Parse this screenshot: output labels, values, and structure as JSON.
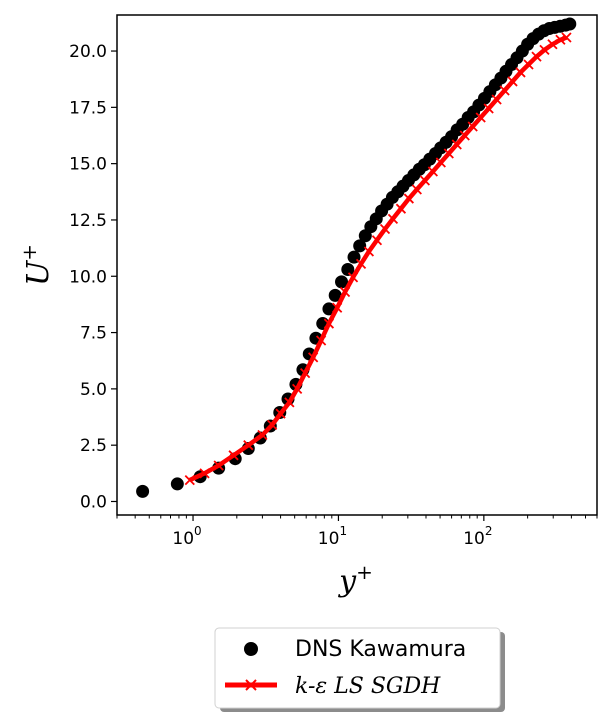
{
  "chart_data": {
    "type": "line",
    "xscale": "log",
    "xlim": [
      0.3,
      600
    ],
    "ylim": [
      -0.6,
      21.6
    ],
    "xlabel": "y+",
    "ylabel": "U+",
    "x_ticks": [
      {
        "value": 1,
        "base": "10",
        "exp": "0"
      },
      {
        "value": 10,
        "base": "10",
        "exp": "1"
      },
      {
        "value": 100,
        "base": "10",
        "exp": "2"
      }
    ],
    "y_ticks": [
      "0.0",
      "2.5",
      "5.0",
      "7.5",
      "10.0",
      "12.5",
      "15.0",
      "17.5",
      "20.0"
    ],
    "grid": false,
    "legend_position": "below",
    "series": [
      {
        "name": "DNS Kawamura",
        "style": "markers",
        "marker": "circle",
        "color": "#000000",
        "x": [
          0.45,
          0.78,
          1.12,
          1.5,
          1.95,
          2.4,
          2.9,
          3.4,
          3.95,
          4.5,
          5.1,
          5.7,
          6.3,
          7.0,
          7.8,
          8.6,
          9.5,
          10.5,
          11.6,
          12.8,
          14.0,
          15.3,
          16.7,
          18.2,
          19.8,
          21.6,
          23.5,
          25.6,
          27.8,
          30.3,
          33,
          36,
          39,
          42.5,
          46.5,
          50.5,
          55,
          60,
          65.5,
          71.5,
          78,
          85,
          92.5,
          101,
          110,
          120,
          131,
          142,
          155,
          169,
          184,
          200,
          218,
          238,
          259,
          282,
          307,
          335,
          365,
          390
        ],
        "y": [
          0.45,
          0.78,
          1.1,
          1.48,
          1.9,
          2.35,
          2.82,
          3.35,
          3.95,
          4.55,
          5.2,
          5.85,
          6.55,
          7.25,
          7.9,
          8.55,
          9.15,
          9.75,
          10.3,
          10.85,
          11.35,
          11.8,
          12.2,
          12.55,
          12.9,
          13.2,
          13.5,
          13.75,
          14.0,
          14.25,
          14.5,
          14.75,
          14.95,
          15.2,
          15.45,
          15.7,
          15.95,
          16.2,
          16.5,
          16.75,
          17.05,
          17.3,
          17.6,
          17.9,
          18.2,
          18.5,
          18.8,
          19.1,
          19.4,
          19.7,
          20.0,
          20.3,
          20.55,
          20.75,
          20.9,
          21.0,
          21.05,
          21.1,
          21.15,
          21.2
        ]
      },
      {
        "name": "k-ε LS SGDH",
        "style": "line+markers",
        "marker": "x",
        "color": "#ff0000",
        "x": [
          0.95,
          1.2,
          1.5,
          1.9,
          2.4,
          3.0,
          3.5,
          4.0,
          4.6,
          5.2,
          5.9,
          6.7,
          7.6,
          8.6,
          9.8,
          11.1,
          12.6,
          14.3,
          16.2,
          18.4,
          20.9,
          23.7,
          26.9,
          30.5,
          34.6,
          39.3,
          44.6,
          50.6,
          57.4,
          65.1,
          73.9,
          83.8,
          95.1,
          107.9,
          122.4,
          138.9,
          157.6,
          178.8,
          202.9,
          230.2,
          261.2,
          296.4,
          336.3,
          370
        ],
        "y": [
          0.95,
          1.25,
          1.6,
          2.05,
          2.5,
          2.95,
          3.4,
          3.9,
          4.4,
          5.0,
          5.7,
          6.4,
          7.15,
          7.9,
          8.6,
          9.3,
          9.95,
          10.55,
          11.1,
          11.6,
          12.1,
          12.55,
          13.0,
          13.45,
          13.85,
          14.25,
          14.65,
          15.05,
          15.45,
          15.85,
          16.25,
          16.65,
          17.05,
          17.45,
          17.85,
          18.25,
          18.65,
          19.05,
          19.4,
          19.75,
          20.05,
          20.3,
          20.5,
          20.6
        ]
      }
    ]
  }
}
